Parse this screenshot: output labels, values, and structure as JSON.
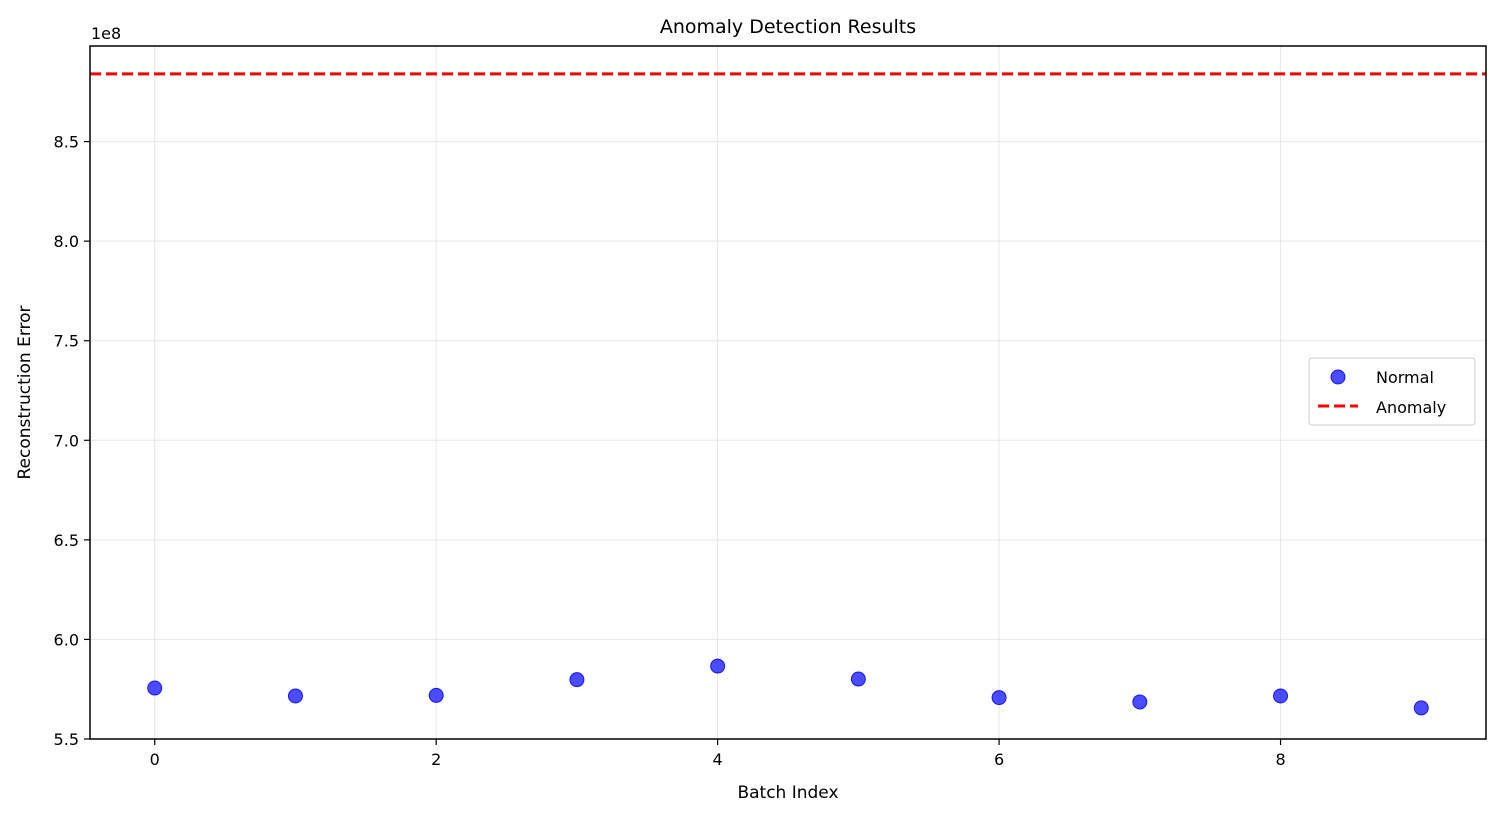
{
  "chart_data": {
    "type": "scatter",
    "title": "Anomaly Detection Results",
    "xlabel": "Batch Index",
    "ylabel": "Reconstruction Error",
    "y_offset_label": "1e8",
    "xlim": [
      -0.46,
      9.46
    ],
    "ylim": [
      550000000,
      898000000
    ],
    "x_ticks": [
      0,
      2,
      4,
      6,
      8
    ],
    "x_tick_labels": [
      "0",
      "2",
      "4",
      "6",
      "8"
    ],
    "y_ticks": [
      550000000,
      600000000,
      650000000,
      700000000,
      750000000,
      800000000,
      850000000
    ],
    "y_tick_labels": [
      "5.5",
      "6.0",
      "6.5",
      "7.0",
      "7.5",
      "8.0",
      "8.5"
    ],
    "grid": true,
    "legend_position": "center-right",
    "series": [
      {
        "name": "Normal",
        "kind": "scatter",
        "color": "#0000ff",
        "x": [
          0,
          1,
          2,
          3,
          4,
          5,
          6,
          7,
          8,
          9
        ],
        "y": [
          575600000,
          571600000,
          571900000,
          579800000,
          586600000,
          580100000,
          570800000,
          568600000,
          571600000,
          565600000
        ]
      },
      {
        "name": "Anomaly",
        "kind": "hline",
        "color": "#ff0000",
        "y": 884000000
      }
    ]
  }
}
